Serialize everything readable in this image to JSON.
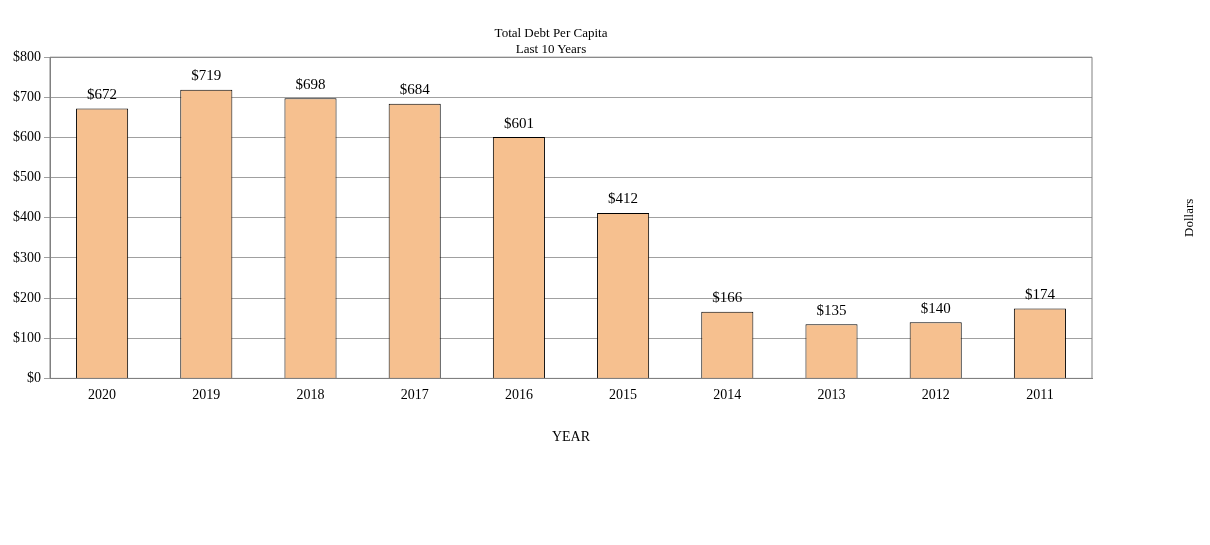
{
  "chart_data": {
    "type": "bar",
    "title": "Total Debt Per Capita",
    "subtitle": "Last 10 Years",
    "xlabel": "YEAR",
    "annotations": [
      "Dollars"
    ],
    "categories": [
      "2020",
      "2019",
      "2018",
      "2017",
      "2016",
      "2015",
      "2014",
      "2013",
      "2012",
      "2011"
    ],
    "values": [
      672,
      719,
      698,
      684,
      601,
      412,
      166,
      135,
      140,
      174
    ],
    "value_labels": [
      "$672",
      "$719",
      "$698",
      "$684",
      "$601",
      "$412",
      "$166",
      "$135",
      "$140",
      "$174"
    ],
    "color": "#f6c08f",
    "ylim": [
      0,
      800
    ],
    "yticks": [
      {
        "value": 0,
        "label": "$0"
      },
      {
        "value": 100,
        "label": "$100"
      },
      {
        "value": 200,
        "label": "$200"
      },
      {
        "value": 300,
        "label": "$300"
      },
      {
        "value": 400,
        "label": "$400"
      },
      {
        "value": 500,
        "label": "$500"
      },
      {
        "value": 600,
        "label": "$600"
      },
      {
        "value": 700,
        "label": "$700"
      },
      {
        "value": 800,
        "label": "$800"
      }
    ],
    "grid": "y",
    "legend": false
  }
}
